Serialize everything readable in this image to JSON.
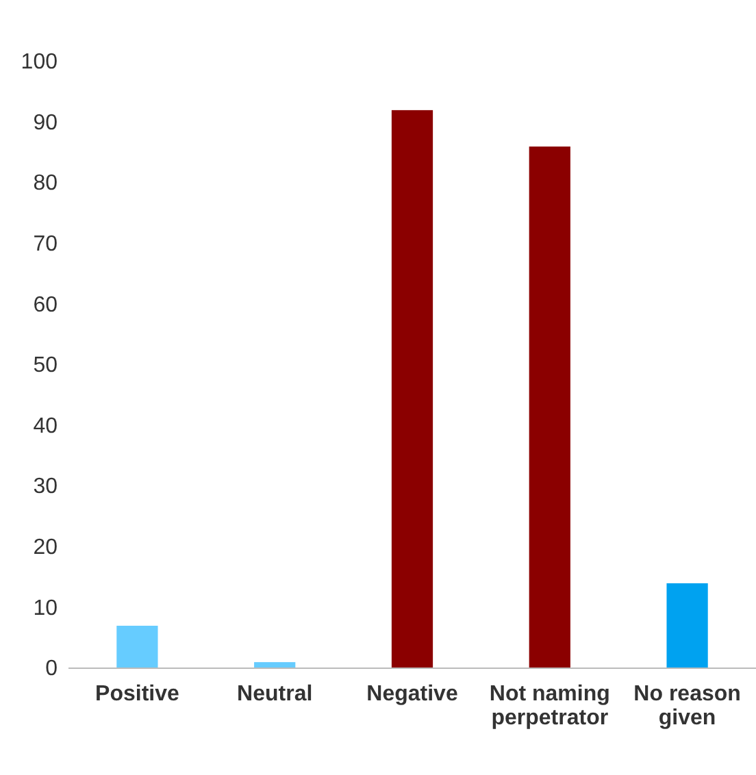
{
  "chart_data": {
    "type": "bar",
    "categories": [
      "Positive",
      "Neutral",
      "Negative",
      "Not naming perpetrator",
      "No reason given"
    ],
    "values": [
      7,
      1,
      92,
      86,
      14
    ],
    "colors": [
      "#66ccff",
      "#66ccff",
      "#8b0000",
      "#8b0000",
      "#00a2f0"
    ],
    "ylim": [
      0,
      100
    ],
    "yticks": [
      0,
      10,
      20,
      30,
      40,
      50,
      60,
      70,
      80,
      90,
      100
    ],
    "grid": false
  }
}
